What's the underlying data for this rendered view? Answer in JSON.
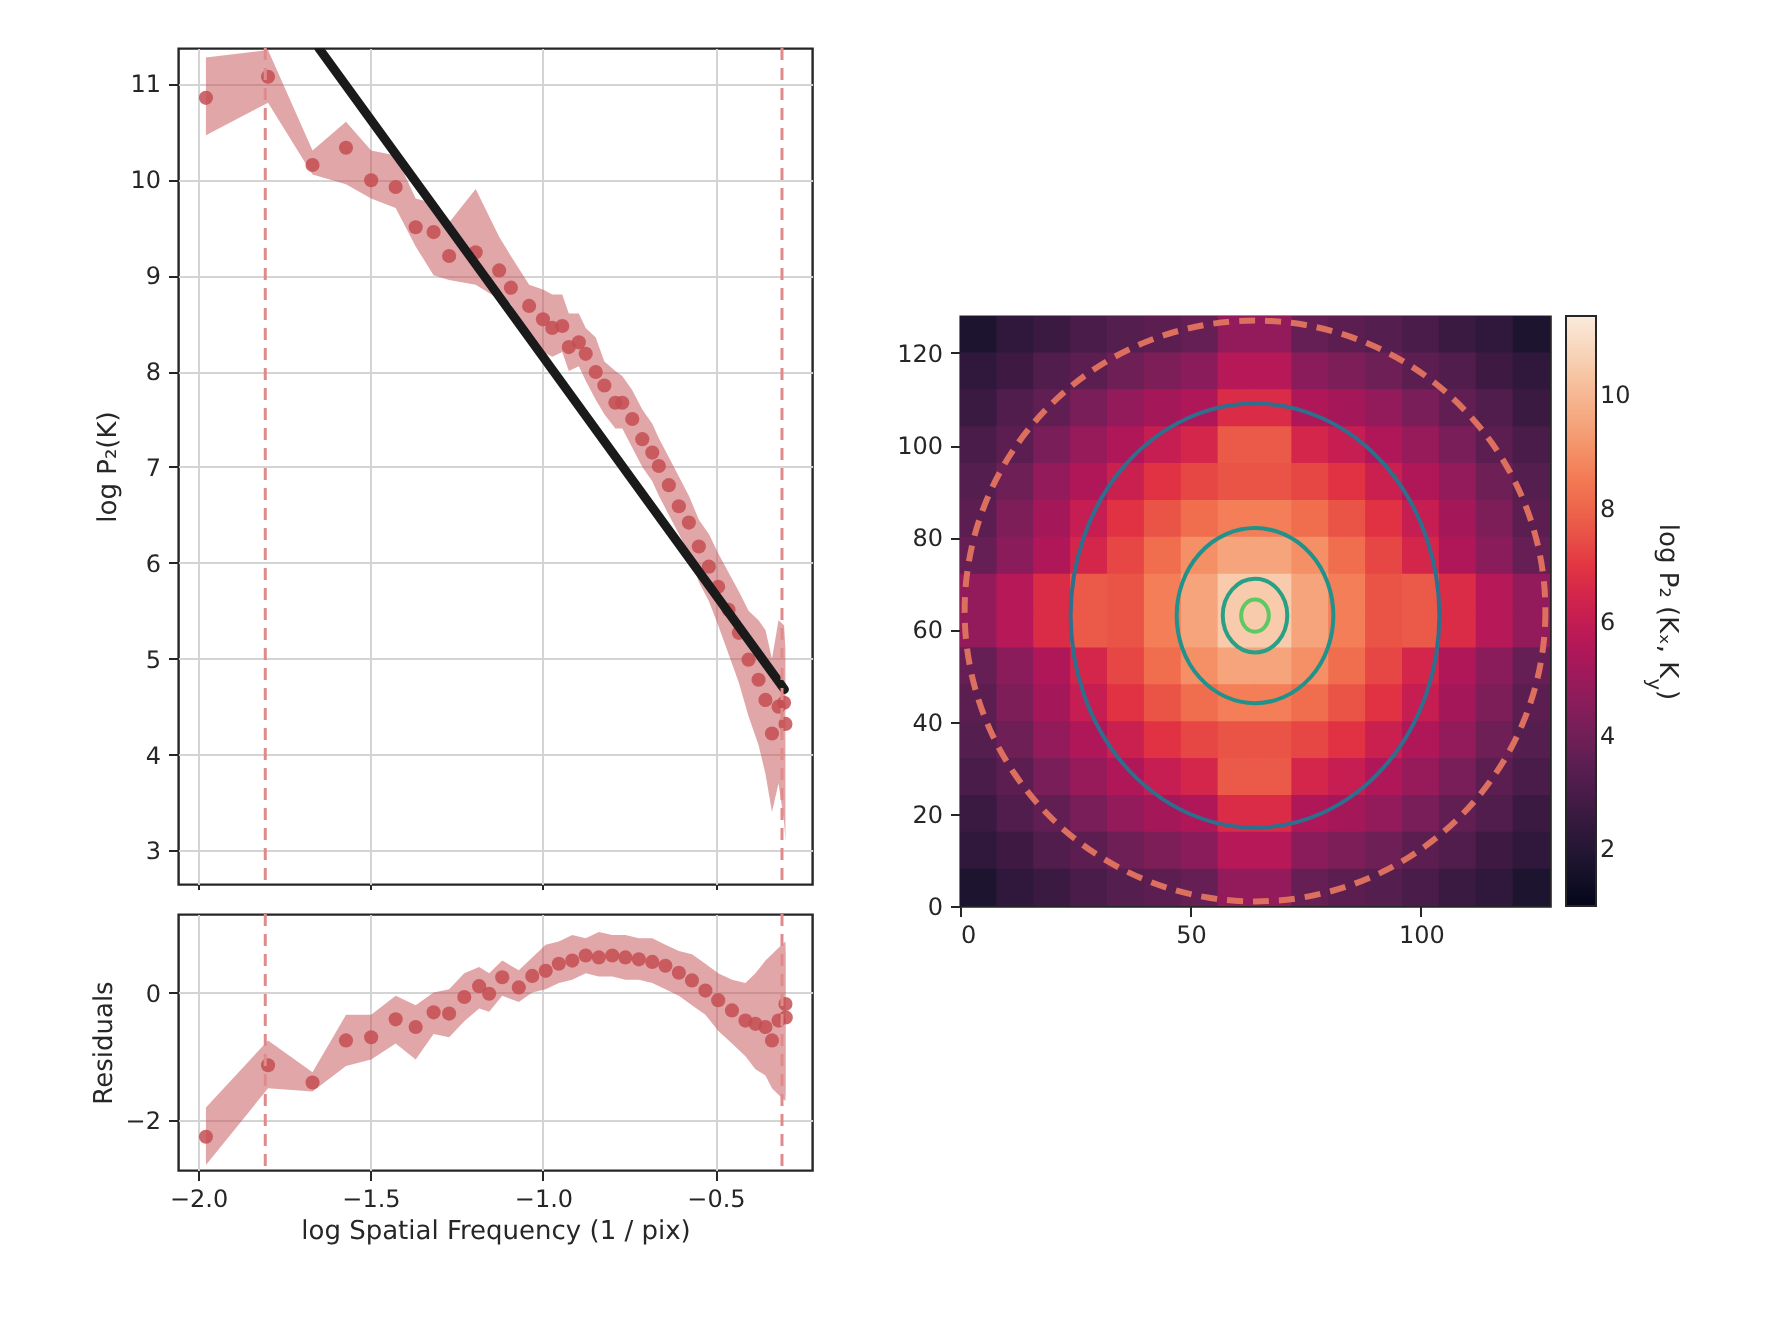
{
  "chart_data": [
    {
      "type": "scatter",
      "ylabel": "log P₂(K)",
      "xlim": [
        -2.058,
        -0.22
      ],
      "ylim": [
        2.65,
        11.37
      ],
      "xticks": [
        -2,
        -1.5,
        -1,
        -0.5
      ],
      "yticks": [
        3,
        4,
        5,
        6,
        7,
        8,
        9,
        10,
        11
      ],
      "grid": true,
      "tick_labels": "y",
      "series": [
        {
          "type": "scatter",
          "marker": "circle",
          "color": "#c44e52",
          "x": [
            -1.977,
            -1.797,
            -1.668,
            -1.571,
            -1.498,
            -1.427,
            -1.369,
            -1.317,
            -1.272,
            -1.195,
            -1.127,
            -1.093,
            -1.04,
            -1.0,
            -0.973,
            -0.944,
            -0.925,
            -0.896,
            -0.876,
            -0.847,
            -0.822,
            -0.79,
            -0.77,
            -0.741,
            -0.712,
            -0.683,
            -0.664,
            -0.635,
            -0.606,
            -0.577,
            -0.548,
            -0.519,
            -0.492,
            -0.462,
            -0.432,
            -0.404,
            -0.375,
            -0.355,
            -0.336,
            -0.317,
            -0.301,
            -0.297
          ],
          "values": [
            10.85,
            11.07,
            10.15,
            10.33,
            9.99,
            9.92,
            9.5,
            9.45,
            9.2,
            9.24,
            9.05,
            8.87,
            8.68,
            8.54,
            8.45,
            8.47,
            8.25,
            8.3,
            8.18,
            7.99,
            7.85,
            7.67,
            7.67,
            7.5,
            7.29,
            7.15,
            7.01,
            6.81,
            6.59,
            6.42,
            6.17,
            5.96,
            5.75,
            5.51,
            5.27,
            4.99,
            4.78,
            4.57,
            4.22,
            4.5,
            4.54,
            4.32
          ],
          "lower": [
            10.46,
            10.8,
            10.05,
            9.95,
            9.8,
            9.7,
            9.3,
            9.0,
            8.95,
            8.9,
            8.75,
            8.7,
            8.35,
            8.2,
            8.15,
            8.2,
            8.0,
            8.05,
            7.9,
            7.7,
            7.55,
            7.4,
            7.4,
            7.2,
            7.0,
            6.85,
            6.7,
            6.5,
            6.3,
            6.1,
            5.8,
            5.6,
            5.35,
            5.05,
            4.75,
            4.4,
            4.1,
            3.8,
            3.4,
            3.7,
            3.3,
            3.1
          ],
          "upper": [
            11.27,
            11.35,
            10.3,
            10.6,
            10.3,
            10.25,
            9.8,
            9.75,
            9.55,
            9.9,
            9.4,
            9.2,
            8.9,
            8.85,
            8.8,
            8.8,
            8.6,
            8.6,
            8.45,
            8.35,
            8.1,
            8.0,
            7.95,
            7.8,
            7.6,
            7.45,
            7.3,
            7.1,
            6.9,
            6.7,
            6.45,
            6.3,
            6.1,
            5.9,
            5.7,
            5.5,
            5.4,
            5.3,
            5.0,
            5.4,
            5.35,
            5.1
          ]
        },
        {
          "type": "line",
          "color": "#1a1a1a",
          "x": [
            -1.65,
            -0.3
          ],
          "values": [
            11.37,
            4.68
          ]
        }
      ],
      "ref_lines": [
        {
          "axis": "x",
          "value": -1.805,
          "color": "#e08b8b",
          "line_style": "dashed"
        },
        {
          "axis": "x",
          "value": -0.307,
          "color": "#e08b8b",
          "line_style": "dashed"
        }
      ]
    },
    {
      "type": "scatter",
      "xlabel": "log Spatial Frequency (1 / pix)",
      "ylabel": "Residuals",
      "xlim": [
        -2.058,
        -0.22
      ],
      "ylim": [
        -2.78,
        1.23
      ],
      "xticks": [
        {
          "value": -2,
          "label": "−2.0"
        },
        {
          "value": -1.5,
          "label": "−1.5"
        },
        {
          "value": -1,
          "label": "−1.0"
        },
        {
          "value": -0.5,
          "label": "−0.5"
        }
      ],
      "yticks": [
        {
          "value": -2,
          "label": "−2"
        },
        0
      ],
      "grid": true,
      "series": [
        {
          "type": "scatter",
          "marker": "circle",
          "color": "#c44e52",
          "x": [
            -1.977,
            -1.797,
            -1.668,
            -1.571,
            -1.498,
            -1.427,
            -1.369,
            -1.317,
            -1.272,
            -1.228,
            -1.185,
            -1.156,
            -1.118,
            -1.07,
            -1.031,
            -0.992,
            -0.954,
            -0.915,
            -0.876,
            -0.838,
            -0.799,
            -0.761,
            -0.722,
            -0.683,
            -0.645,
            -0.606,
            -0.568,
            -0.529,
            -0.492,
            -0.452,
            -0.413,
            -0.384,
            -0.355,
            -0.336,
            -0.317,
            -0.297,
            -0.296
          ],
          "values": [
            -2.26,
            -1.14,
            -1.41,
            -0.75,
            -0.7,
            -0.42,
            -0.54,
            -0.31,
            -0.33,
            -0.07,
            0.1,
            -0.02,
            0.24,
            0.08,
            0.26,
            0.34,
            0.45,
            0.5,
            0.58,
            0.55,
            0.58,
            0.55,
            0.52,
            0.48,
            0.42,
            0.31,
            0.19,
            0.03,
            -0.12,
            -0.28,
            -0.44,
            -0.49,
            -0.54,
            -0.75,
            -0.44,
            -0.18,
            -0.39
          ],
          "lower": [
            -2.7,
            -1.5,
            -1.55,
            -1.15,
            -1.05,
            -0.8,
            -1.05,
            -0.65,
            -0.7,
            -0.45,
            -0.25,
            -0.3,
            -0.05,
            -0.15,
            0.0,
            0.05,
            0.15,
            0.2,
            0.3,
            0.25,
            0.25,
            0.2,
            0.2,
            0.15,
            0.05,
            -0.05,
            -0.2,
            -0.35,
            -0.6,
            -0.8,
            -1.0,
            -1.2,
            -1.3,
            -1.5,
            -1.6,
            -1.7,
            -1.5
          ],
          "upper": [
            -1.8,
            -0.75,
            -1.25,
            -0.35,
            -0.35,
            -0.05,
            -0.2,
            0.0,
            0.05,
            0.3,
            0.4,
            0.3,
            0.5,
            0.35,
            0.55,
            0.75,
            0.8,
            0.9,
            0.85,
            0.95,
            0.9,
            0.9,
            0.85,
            0.85,
            0.75,
            0.65,
            0.6,
            0.45,
            0.3,
            0.2,
            0.15,
            0.3,
            0.5,
            0.6,
            0.7,
            0.8,
            0.6
          ]
        }
      ],
      "ref_lines": [
        {
          "axis": "x",
          "value": -1.805,
          "color": "#e08b8b",
          "line_style": "dashed"
        },
        {
          "axis": "x",
          "value": -0.307,
          "color": "#e08b8b",
          "line_style": "dashed"
        }
      ]
    },
    {
      "type": "heatmap",
      "clabel": "log P₂ (Kₓ, K$_{y}$)",
      "clim": [
        1,
        11.4
      ],
      "cticks": [
        2,
        4,
        6,
        8,
        10
      ],
      "xlim": [
        0,
        128
      ],
      "ylim": [
        0,
        128
      ],
      "xticks": [
        0,
        50,
        100
      ],
      "yticks": [
        0,
        20,
        40,
        60,
        80,
        100,
        120
      ],
      "x": [
        4,
        12,
        20,
        28,
        36,
        44,
        52,
        60,
        68,
        76,
        84,
        92,
        100,
        108,
        116,
        124
      ],
      "y": [
        124,
        116,
        108,
        100,
        92,
        84,
        76,
        68,
        60,
        52,
        44,
        36,
        28,
        20,
        12,
        4
      ],
      "cells": [
        [
          1.8,
          2.3,
          2.6,
          3.0,
          3.3,
          3.5,
          3.7,
          4.8,
          4.8,
          3.7,
          3.5,
          3.3,
          3.0,
          2.6,
          2.3,
          1.8
        ],
        [
          2.3,
          2.7,
          3.2,
          3.5,
          3.9,
          4.3,
          4.6,
          5.7,
          5.7,
          4.6,
          4.3,
          3.9,
          3.5,
          3.2,
          2.7,
          2.3
        ],
        [
          2.6,
          3.2,
          3.6,
          4.2,
          4.8,
          5.2,
          5.5,
          6.7,
          6.7,
          5.5,
          5.2,
          4.8,
          4.2,
          3.6,
          3.2,
          2.6
        ],
        [
          3.0,
          3.5,
          4.2,
          4.9,
          5.5,
          6.1,
          6.5,
          7.7,
          7.7,
          6.5,
          6.1,
          5.5,
          4.9,
          4.2,
          3.5,
          3.0
        ],
        [
          3.3,
          3.9,
          4.8,
          5.5,
          6.2,
          6.9,
          7.3,
          7.6,
          7.6,
          7.3,
          6.9,
          6.2,
          5.5,
          4.8,
          3.9,
          3.3
        ],
        [
          3.5,
          4.3,
          5.2,
          6.1,
          6.9,
          7.6,
          8.2,
          8.6,
          8.6,
          8.2,
          7.6,
          6.9,
          6.1,
          5.2,
          4.3,
          3.5
        ],
        [
          3.7,
          4.6,
          5.5,
          6.5,
          7.3,
          8.2,
          9.0,
          9.5,
          9.5,
          9.0,
          8.2,
          7.3,
          6.5,
          5.5,
          4.6,
          3.7
        ],
        [
          4.8,
          5.7,
          6.7,
          7.7,
          7.6,
          8.6,
          9.5,
          10.5,
          10.5,
          9.5,
          8.6,
          7.6,
          7.7,
          6.7,
          5.7,
          4.8
        ],
        [
          4.8,
          5.7,
          6.7,
          7.7,
          7.6,
          8.6,
          9.5,
          10.5,
          10.5,
          9.5,
          8.6,
          7.6,
          7.7,
          6.7,
          5.7,
          4.8
        ],
        [
          3.7,
          4.6,
          5.5,
          6.5,
          7.3,
          8.2,
          9.0,
          9.5,
          9.5,
          9.0,
          8.2,
          7.3,
          6.5,
          5.5,
          4.6,
          3.7
        ],
        [
          3.5,
          4.3,
          5.2,
          6.1,
          6.9,
          7.6,
          8.2,
          8.6,
          8.6,
          8.2,
          7.6,
          6.9,
          6.1,
          5.2,
          4.3,
          3.5
        ],
        [
          3.3,
          3.9,
          4.8,
          5.5,
          6.2,
          6.9,
          7.3,
          7.6,
          7.6,
          7.3,
          6.9,
          6.2,
          5.5,
          4.8,
          3.9,
          3.3
        ],
        [
          3.0,
          3.5,
          4.2,
          4.9,
          5.5,
          6.1,
          6.5,
          7.7,
          7.7,
          6.5,
          6.1,
          5.5,
          4.9,
          4.2,
          3.5,
          3.0
        ],
        [
          2.6,
          3.2,
          3.6,
          4.2,
          4.8,
          5.2,
          5.5,
          6.7,
          6.7,
          5.5,
          5.2,
          4.8,
          4.2,
          3.6,
          3.2,
          2.6
        ],
        [
          2.3,
          2.7,
          3.2,
          3.5,
          3.9,
          4.3,
          4.6,
          5.7,
          5.7,
          4.6,
          4.3,
          3.9,
          3.5,
          3.2,
          2.7,
          2.3
        ],
        [
          1.8,
          2.3,
          2.6,
          3.0,
          3.3,
          3.5,
          3.7,
          4.8,
          4.8,
          3.7,
          3.5,
          3.3,
          3.0,
          2.6,
          2.3,
          1.8
        ]
      ]
    }
  ]
}
